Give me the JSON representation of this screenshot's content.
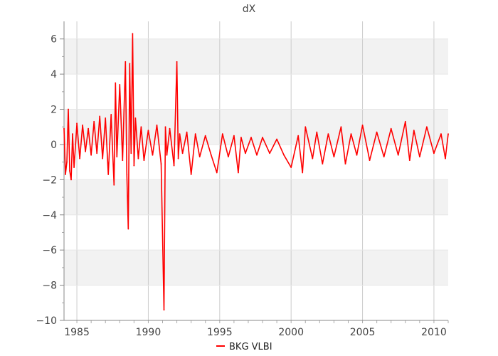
{
  "chart_data": {
    "type": "line",
    "title": "dX",
    "xlabel": "",
    "ylabel": "",
    "xlim": [
      1984.1,
      2011.0
    ],
    "ylim": [
      -10,
      7
    ],
    "x_ticks": [
      1985,
      1990,
      1995,
      2000,
      2005,
      2010
    ],
    "y_ticks": [
      -10,
      -8,
      -6,
      -4,
      -2,
      0,
      2,
      4,
      6
    ],
    "grid": true,
    "banded_background": true,
    "legend_position": "bottom-center",
    "series": [
      {
        "name": "BKG VLBI",
        "color": "#ff0000",
        "x": [
          1984.1,
          1984.2,
          1984.3,
          1984.4,
          1984.5,
          1984.6,
          1984.7,
          1984.8,
          1985.0,
          1985.2,
          1985.4,
          1985.6,
          1985.8,
          1986.0,
          1986.2,
          1986.4,
          1986.6,
          1986.8,
          1987.0,
          1987.2,
          1987.4,
          1987.6,
          1987.7,
          1987.8,
          1988.0,
          1988.2,
          1988.4,
          1988.5,
          1988.6,
          1988.7,
          1988.8,
          1988.9,
          1989.0,
          1989.1,
          1989.3,
          1989.5,
          1989.7,
          1990.0,
          1990.3,
          1990.6,
          1990.9,
          1991.1,
          1991.2,
          1991.3,
          1991.5,
          1991.8,
          1992.0,
          1992.1,
          1992.2,
          1992.4,
          1992.7,
          1993.0,
          1993.3,
          1993.6,
          1994.0,
          1994.4,
          1994.8,
          1995.2,
          1995.6,
          1996.0,
          1996.3,
          1996.5,
          1996.8,
          1997.2,
          1997.6,
          1998.0,
          1998.5,
          1999.0,
          1999.5,
          2000.0,
          2000.5,
          2000.8,
          2001.0,
          2001.5,
          2001.8,
          2002.2,
          2002.6,
          2003.0,
          2003.5,
          2003.8,
          2004.2,
          2004.6,
          2005.0,
          2005.5,
          2006.0,
          2006.5,
          2007.0,
          2007.5,
          2008.0,
          2008.3,
          2008.6,
          2009.0,
          2009.5,
          2010.0,
          2010.5,
          2010.8,
          2011.0
        ],
        "y": [
          0.9,
          -1.7,
          -1.0,
          2.0,
          -1.5,
          -2.0,
          0.6,
          -1.3,
          1.2,
          -0.8,
          1.1,
          -0.4,
          0.9,
          -0.6,
          1.3,
          -0.5,
          1.6,
          -0.8,
          1.5,
          -1.7,
          1.7,
          -2.3,
          3.5,
          -0.7,
          3.4,
          -0.9,
          4.7,
          -1.7,
          -4.8,
          4.6,
          -0.5,
          6.3,
          -1.2,
          1.5,
          -0.8,
          1.0,
          -0.9,
          0.8,
          -0.6,
          1.1,
          -1.1,
          -9.4,
          1.0,
          -0.6,
          0.9,
          -1.2,
          4.7,
          -0.8,
          0.6,
          -0.5,
          0.7,
          -1.7,
          0.6,
          -0.7,
          0.5,
          -0.6,
          -1.6,
          0.6,
          -0.7,
          0.5,
          -1.6,
          0.4,
          -0.5,
          0.4,
          -0.6,
          0.4,
          -0.5,
          0.3,
          -0.6,
          -1.3,
          0.5,
          -1.6,
          1.0,
          -0.8,
          0.7,
          -1.1,
          0.6,
          -0.7,
          1.0,
          -1.1,
          0.6,
          -0.6,
          1.1,
          -0.9,
          0.7,
          -0.7,
          0.9,
          -0.6,
          1.3,
          -0.9,
          0.8,
          -0.7,
          1.0,
          -0.5,
          0.6,
          -0.8,
          0.6
        ]
      }
    ]
  }
}
